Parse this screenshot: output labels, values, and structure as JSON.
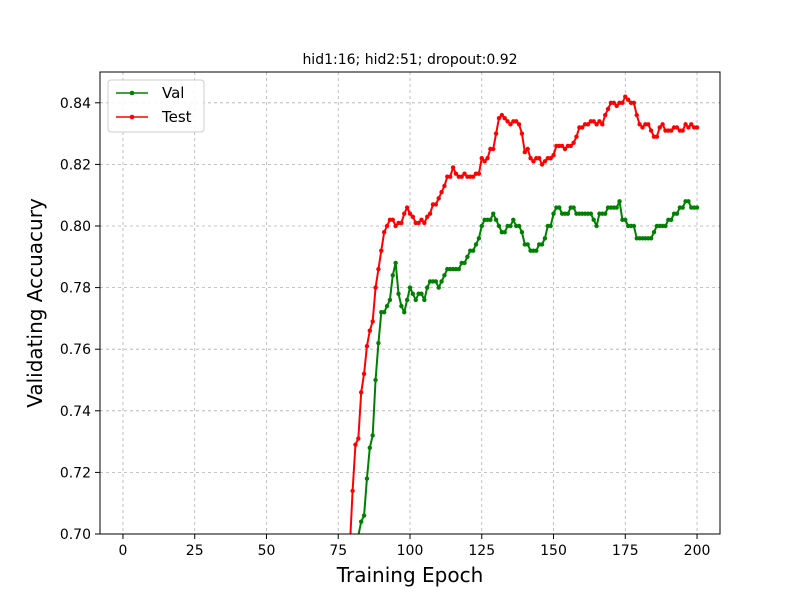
{
  "chart_data": {
    "type": "line",
    "title": "hid1:16; hid2:51; dropout:0.92",
    "xlabel": "Training Epoch",
    "ylabel": "Validating Accuacury",
    "xlim": [
      -8,
      208
    ],
    "ylim": [
      0.7,
      0.85
    ],
    "xticks": [
      0,
      25,
      50,
      75,
      100,
      125,
      150,
      175,
      200
    ],
    "yticks": [
      0.7,
      0.72,
      0.74,
      0.76,
      0.78,
      0.8,
      0.82,
      0.84
    ],
    "ytick_labels": [
      "0.70",
      "0.72",
      "0.74",
      "0.76",
      "0.78",
      "0.80",
      "0.82",
      "0.84"
    ],
    "grid": true,
    "legend_position": "top-left",
    "series": [
      {
        "name": "Val",
        "color": "#008000",
        "x": [
          81,
          83,
          84,
          85,
          86,
          87,
          88,
          89,
          90,
          91,
          92,
          93,
          94,
          95,
          96,
          97,
          98,
          99,
          100,
          101,
          102,
          103,
          104,
          105,
          106,
          107,
          108,
          109,
          110,
          111,
          112,
          113,
          114,
          115,
          116,
          117,
          118,
          119,
          120,
          121,
          122,
          123,
          124,
          125,
          126,
          127,
          128,
          129,
          130,
          131,
          132,
          133,
          134,
          135,
          136,
          137,
          138,
          139,
          140,
          141,
          142,
          143,
          144,
          145,
          146,
          147,
          148,
          149,
          150,
          151,
          152,
          153,
          154,
          155,
          156,
          157,
          158,
          159,
          160,
          161,
          162,
          163,
          164,
          165,
          166,
          167,
          168,
          169,
          170,
          171,
          172,
          173,
          174,
          175,
          176,
          177,
          178,
          179,
          180,
          181,
          182,
          183,
          184,
          185,
          186,
          187,
          188,
          189,
          190,
          191,
          192,
          193,
          194,
          195,
          196,
          197,
          198,
          199,
          200
        ],
        "values": [
          0.695,
          0.704,
          0.706,
          0.718,
          0.728,
          0.732,
          0.75,
          0.762,
          0.772,
          0.772,
          0.774,
          0.776,
          0.784,
          0.788,
          0.778,
          0.774,
          0.772,
          0.776,
          0.78,
          0.778,
          0.776,
          0.778,
          0.778,
          0.776,
          0.78,
          0.782,
          0.782,
          0.782,
          0.78,
          0.782,
          0.784,
          0.786,
          0.786,
          0.786,
          0.786,
          0.786,
          0.788,
          0.788,
          0.79,
          0.792,
          0.792,
          0.794,
          0.796,
          0.8,
          0.802,
          0.802,
          0.802,
          0.804,
          0.802,
          0.8,
          0.798,
          0.798,
          0.8,
          0.8,
          0.802,
          0.8,
          0.8,
          0.798,
          0.794,
          0.794,
          0.792,
          0.792,
          0.792,
          0.794,
          0.794,
          0.796,
          0.8,
          0.8,
          0.804,
          0.806,
          0.806,
          0.804,
          0.804,
          0.804,
          0.806,
          0.806,
          0.804,
          0.804,
          0.804,
          0.804,
          0.804,
          0.804,
          0.802,
          0.8,
          0.804,
          0.804,
          0.804,
          0.806,
          0.806,
          0.806,
          0.806,
          0.808,
          0.802,
          0.802,
          0.8,
          0.8,
          0.8,
          0.796,
          0.796,
          0.796,
          0.796,
          0.796,
          0.796,
          0.798,
          0.8,
          0.8,
          0.8,
          0.8,
          0.802,
          0.802,
          0.804,
          0.804,
          0.806,
          0.806,
          0.808,
          0.808,
          0.806,
          0.806,
          0.806
        ]
      },
      {
        "name": "Test",
        "color": "#ff0000",
        "x": [
          79,
          80,
          81,
          82,
          83,
          84,
          85,
          86,
          87,
          88,
          89,
          90,
          91,
          92,
          93,
          94,
          95,
          96,
          97,
          98,
          99,
          100,
          101,
          102,
          103,
          104,
          105,
          106,
          107,
          108,
          109,
          110,
          111,
          112,
          113,
          114,
          115,
          116,
          117,
          118,
          119,
          120,
          121,
          122,
          123,
          124,
          125,
          126,
          127,
          128,
          129,
          130,
          131,
          132,
          133,
          134,
          135,
          136,
          137,
          138,
          139,
          140,
          141,
          142,
          143,
          144,
          145,
          146,
          147,
          148,
          149,
          150,
          151,
          152,
          153,
          154,
          155,
          156,
          157,
          158,
          159,
          160,
          161,
          162,
          163,
          164,
          165,
          166,
          167,
          168,
          169,
          170,
          171,
          172,
          173,
          174,
          175,
          176,
          177,
          178,
          179,
          180,
          181,
          182,
          183,
          184,
          185,
          186,
          187,
          188,
          189,
          190,
          191,
          192,
          193,
          194,
          195,
          196,
          197,
          198,
          199,
          200
        ],
        "values": [
          0.695,
          0.714,
          0.729,
          0.731,
          0.746,
          0.752,
          0.761,
          0.766,
          0.769,
          0.78,
          0.786,
          0.792,
          0.798,
          0.8,
          0.802,
          0.802,
          0.8,
          0.801,
          0.801,
          0.804,
          0.806,
          0.804,
          0.803,
          0.801,
          0.801,
          0.802,
          0.801,
          0.803,
          0.804,
          0.807,
          0.807,
          0.809,
          0.811,
          0.813,
          0.816,
          0.816,
          0.819,
          0.817,
          0.816,
          0.816,
          0.817,
          0.816,
          0.816,
          0.816,
          0.817,
          0.817,
          0.822,
          0.821,
          0.822,
          0.825,
          0.825,
          0.83,
          0.835,
          0.836,
          0.835,
          0.834,
          0.833,
          0.834,
          0.834,
          0.833,
          0.83,
          0.824,
          0.825,
          0.822,
          0.821,
          0.822,
          0.822,
          0.82,
          0.821,
          0.822,
          0.822,
          0.823,
          0.826,
          0.826,
          0.826,
          0.825,
          0.826,
          0.826,
          0.827,
          0.829,
          0.832,
          0.832,
          0.833,
          0.833,
          0.834,
          0.834,
          0.833,
          0.834,
          0.833,
          0.836,
          0.838,
          0.84,
          0.84,
          0.839,
          0.84,
          0.84,
          0.842,
          0.841,
          0.84,
          0.84,
          0.836,
          0.833,
          0.832,
          0.833,
          0.833,
          0.831,
          0.829,
          0.829,
          0.832,
          0.833,
          0.831,
          0.831,
          0.831,
          0.832,
          0.832,
          0.831,
          0.831,
          0.833,
          0.832,
          0.833,
          0.832,
          0.832
        ]
      }
    ]
  }
}
